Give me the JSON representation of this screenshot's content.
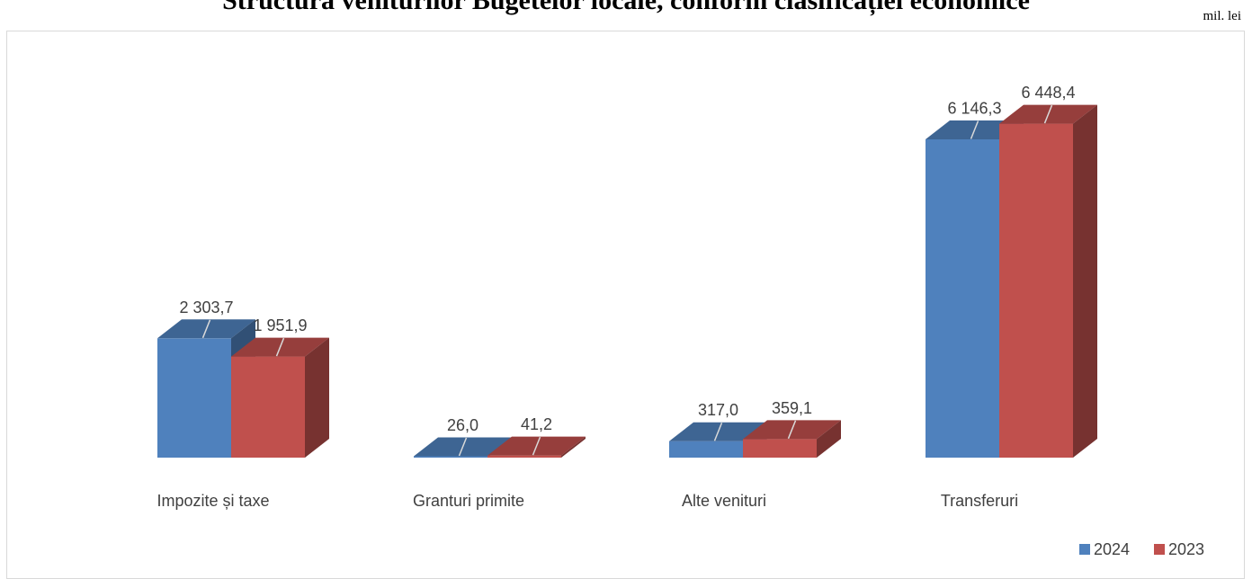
{
  "header": {
    "title": "Structura veniturilor Bugetelor locale, conform clasificației economice",
    "unit": "mil. lei"
  },
  "chart_data": {
    "type": "bar",
    "title": "Structura veniturilor Bugetelor locale, conform clasificației economice",
    "categories": [
      "Impozite și taxe",
      "Granturi primite",
      "Alte venituri",
      "Transferuri"
    ],
    "series": [
      {
        "name": "2024",
        "values": [
          2303.7,
          26.0,
          317.0,
          6146.3
        ],
        "labels": [
          "2 303,7",
          "26,0",
          "317,0",
          "6 146,3"
        ],
        "color": "#4f81bd"
      },
      {
        "name": "2023",
        "values": [
          1951.9,
          41.2,
          359.1,
          6448.4
        ],
        "labels": [
          "1 951,9",
          "41,2",
          "359,1",
          "6 448,4"
        ],
        "color": "#c0504d"
      }
    ],
    "ylim": [
      0,
      7000
    ],
    "grid": false,
    "legend_position": "bottom-right",
    "unit": "mil. lei",
    "style": "3d-clustered-column"
  }
}
